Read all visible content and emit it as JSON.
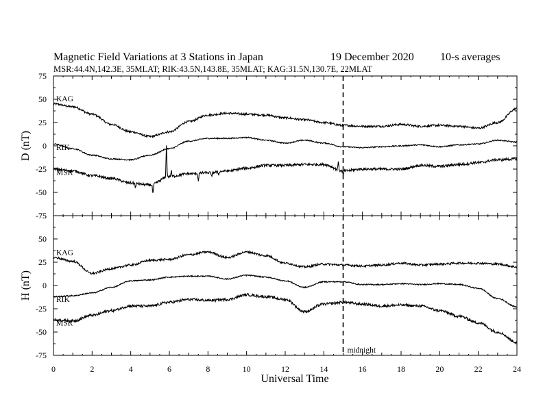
{
  "header": {
    "title": "Magnetic Field Variations at 3 Stations in Japan",
    "date": "19 December 2020",
    "averaging": "10-s averages",
    "stations_line": "MSR:44.4N,142.3E, 35MLAT;  RIK:43.5N,143.8E, 35MLAT;  KAG:31.5N,130.7E, 22MLAT"
  },
  "chart_data": {
    "type": "line",
    "xlabel": "Universal Time",
    "xlim": [
      0,
      24
    ],
    "x_ticks": [
      "0",
      "2",
      "4",
      "6",
      "8",
      "10",
      "12",
      "14",
      "16",
      "18",
      "20",
      "22",
      "24"
    ],
    "marker": {
      "x": 15,
      "label": "midnight",
      "style": "dashed"
    },
    "panels": [
      {
        "name": "D",
        "ylabel": "D (nT)",
        "ylim": [
          -75,
          75
        ],
        "y_ticks": [
          "75",
          "50",
          "25",
          "0",
          "-25",
          "-50",
          "-75"
        ],
        "series": [
          {
            "name": "KAG",
            "x": [
              0,
              1,
              2,
              3,
              4,
              5,
              6,
              7,
              8,
              9,
              10,
              11,
              12,
              13,
              14,
              15,
              16,
              17,
              18,
              19,
              20,
              21,
              22,
              23,
              24
            ],
            "values": [
              45,
              42,
              34,
              23,
              15,
              10,
              15,
              26,
              33,
              35,
              34,
              33,
              30,
              28,
              25,
              22,
              21,
              21,
              23,
              21,
              22,
              21,
              19,
              25,
              40
            ]
          },
          {
            "name": "RIK",
            "x": [
              0,
              1,
              2,
              3,
              4,
              5,
              6,
              7,
              8,
              9,
              10,
              11,
              12,
              13,
              14,
              15,
              16,
              17,
              18,
              19,
              20,
              21,
              22,
              23,
              24
            ],
            "values": [
              2,
              -3,
              -10,
              -14,
              -15,
              -10,
              -3,
              5,
              8,
              8,
              9,
              6,
              3,
              6,
              3,
              -1,
              -2,
              -1,
              0,
              1,
              -1,
              1,
              2,
              6,
              4
            ]
          },
          {
            "name": "MSR",
            "x": [
              0,
              1,
              2,
              3,
              4,
              5,
              6,
              7,
              8,
              9,
              10,
              11,
              12,
              13,
              14,
              15,
              16,
              17,
              18,
              19,
              20,
              21,
              22,
              23,
              24
            ],
            "values": [
              -25,
              -27,
              -32,
              -35,
              -40,
              -42,
              -33,
              -30,
              -29,
              -27,
              -24,
              -21,
              -21,
              -20,
              -20,
              -27,
              -25,
              -25,
              -25,
              -21,
              -22,
              -20,
              -18,
              -15,
              -14
            ]
          }
        ],
        "spikes": [
          {
            "series": "MSR",
            "x": 4.25,
            "value": -45
          },
          {
            "series": "MSR",
            "x": 5.15,
            "value": -52
          },
          {
            "series": "MSR",
            "x": 5.85,
            "value": 0
          },
          {
            "series": "MSR",
            "x": 6.1,
            "value": -27
          },
          {
            "series": "MSR",
            "x": 7.5,
            "value": -38
          },
          {
            "series": "MSR",
            "x": 8.2,
            "value": -34
          },
          {
            "series": "MSR",
            "x": 8.55,
            "value": -31
          },
          {
            "series": "MSR",
            "x": 14.75,
            "value": -17
          },
          {
            "series": "MSR",
            "x": 15.0,
            "value": -32
          }
        ]
      },
      {
        "name": "H",
        "ylabel": "H (nT)",
        "ylim": [
          -75,
          75
        ],
        "y_ticks": [
          "75",
          "50",
          "25",
          "0",
          "-25",
          "-50",
          "-75"
        ],
        "series": [
          {
            "name": "KAG",
            "x": [
              0,
              1,
              2,
              3,
              4,
              5,
              6,
              7,
              8,
              9,
              10,
              11,
              12,
              13,
              14,
              15,
              16,
              17,
              18,
              19,
              20,
              21,
              22,
              23,
              24
            ],
            "values": [
              30,
              26,
              13,
              18,
              22,
              27,
              28,
              33,
              36,
              30,
              36,
              32,
              24,
              20,
              23,
              22,
              21,
              22,
              24,
              22,
              23,
              24,
              24,
              23,
              20
            ]
          },
          {
            "name": "RIK",
            "x": [
              0,
              1,
              2,
              3,
              4,
              5,
              6,
              7,
              8,
              9,
              10,
              11,
              12,
              13,
              14,
              15,
              16,
              17,
              18,
              19,
              20,
              21,
              22,
              23,
              24
            ],
            "values": [
              -12,
              -11,
              -8,
              -2,
              5,
              6,
              9,
              10,
              10,
              7,
              11,
              9,
              5,
              -2,
              4,
              4,
              1,
              1,
              2,
              1,
              2,
              1,
              -3,
              -14,
              -23
            ]
          },
          {
            "name": "MSR",
            "x": [
              0,
              1,
              2,
              3,
              4,
              5,
              6,
              7,
              8,
              9,
              10,
              11,
              12,
              13,
              14,
              15,
              16,
              17,
              18,
              19,
              20,
              21,
              22,
              23,
              24
            ],
            "values": [
              -37,
              -38,
              -32,
              -27,
              -22,
              -22,
              -18,
              -15,
              -16,
              -15,
              -10,
              -12,
              -15,
              -28,
              -20,
              -18,
              -20,
              -22,
              -21,
              -22,
              -27,
              -33,
              -40,
              -50,
              -61
            ]
          }
        ],
        "spikes": []
      }
    ]
  }
}
